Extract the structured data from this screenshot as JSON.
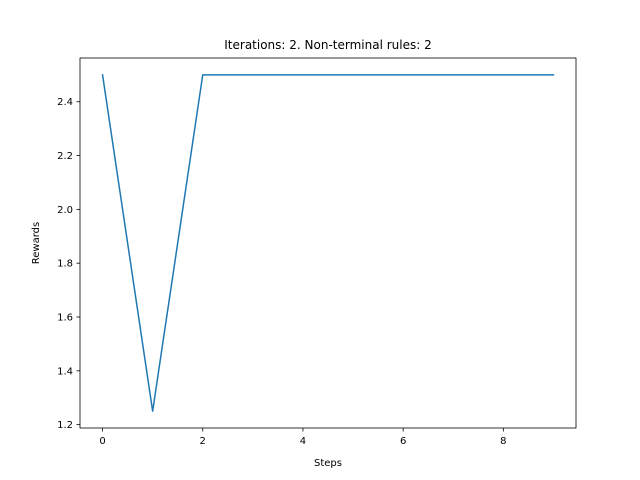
{
  "chart_data": {
    "type": "line",
    "title": "Iterations: 2. Non-terminal rules: 2",
    "xlabel": "Steps",
    "ylabel": "Rewards",
    "xlim": [
      -0.45,
      9.45
    ],
    "ylim": [
      1.1875,
      2.5625
    ],
    "xticks": [
      0,
      2,
      4,
      6,
      8
    ],
    "xtick_labels": [
      "0",
      "2",
      "4",
      "6",
      "8"
    ],
    "yticks": [
      1.2,
      1.4,
      1.6,
      1.8,
      2.0,
      2.2,
      2.4
    ],
    "ytick_labels": [
      "1.2",
      "1.4",
      "1.6",
      "1.8",
      "2.0",
      "2.2",
      "2.4"
    ],
    "grid": false,
    "series": [
      {
        "color": "#1f77b4",
        "x": [
          0,
          1,
          2,
          3,
          4,
          5,
          6,
          7,
          8,
          9
        ],
        "y": [
          2.5,
          1.25,
          2.5,
          2.5,
          2.5,
          2.5,
          2.5,
          2.5,
          2.5,
          2.5
        ]
      }
    ]
  }
}
